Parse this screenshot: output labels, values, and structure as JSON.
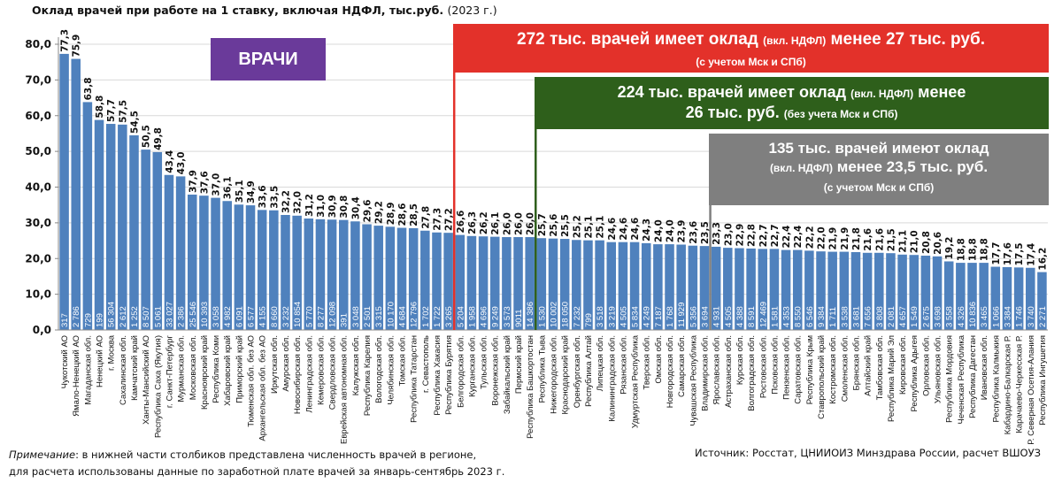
{
  "chart_data": {
    "type": "bar",
    "title": "Оклад врачей при работе на 1 ставку, включая НДФЛ, тыс.руб.",
    "title_year": "(2023 г.)",
    "ylim": [
      0,
      80
    ],
    "yticks": [
      "0,0",
      "10,0",
      "20,0",
      "30,0",
      "40,0",
      "50,0",
      "60,0",
      "70,0",
      "80,0"
    ],
    "grid": true,
    "bar_color": "#4f81bd",
    "categories": [
      "Чукотский АО",
      "Ямало-Ненецкий АО",
      "Магаданская обл.",
      "Ненецкий АО",
      "г. Москва",
      "Сахалинская обл.",
      "Камчатский край",
      "Ханты-Мансийский АО",
      "Республика Саха (Якутия)",
      "г. Санкт-Петербург",
      "Мурманская обл.",
      "Московская обл.",
      "Красноярский край",
      "Республика Коми",
      "Хабаровский край",
      "Приморский край",
      "Тюменская обл. без АО",
      "Архангельская обл. без АО",
      "Иркутская обл.",
      "Амурская обл.",
      "Новосибирская обл.",
      "Ленинградская обл.",
      "Кемеровская обл.",
      "Свердловская обл.",
      "Еврейская автономная обл.",
      "Калужская обл.",
      "Республика Карелия",
      "Вологодская обл.",
      "Челябинская обл.",
      "Томская обл.",
      "Республика Татарстан",
      "г. Севастополь",
      "Республика Хакасия",
      "Республика Бурятия",
      "Белгородская обл.",
      "Курганская обл.",
      "Тульская обл.",
      "Воронежская обл.",
      "Забайкальский край",
      "Пермский край",
      "Республика Башкортостан",
      "Республика Тыва",
      "Нижегородская обл.",
      "Краснодарский край",
      "Оренбургская обл.",
      "Республика Алтай",
      "Липецкая обл.",
      "Калининградская обл.",
      "Рязанская обл.",
      "Удмуртская Республика",
      "Тверская обл.",
      "Омская обл.",
      "Новгородская обл.",
      "Самарская обл.",
      "Чувашская Республика",
      "Владимирская обл.",
      "Ярославская обл.",
      "Астраханская обл.",
      "Курская обл.",
      "Волгоградская обл.",
      "Ростовская обл.",
      "Псковская обл.",
      "Пензенская обл.",
      "Саратовская обл.",
      "Республика Крым",
      "Ставропольский край",
      "Костромская обл.",
      "Смоленская обл.",
      "Брянская обл.",
      "Алтайский край",
      "Тамбовская обл.",
      "Республика Марий Эл",
      "Кировская обл.",
      "Республика Адыгея",
      "Орловская обл.",
      "Ульяновская обл.",
      "Республика Мордовия",
      "Чеченская Республика",
      "Республика Дагестан",
      "Ивановская обл.",
      "Республика Калмыкия",
      "Кабардино-Балкарская Р.",
      "Карачаево-Черкесская Р.",
      "Р. Северная Осетия-Алания",
      "Республика Ингушетия"
    ],
    "values": [
      77.3,
      75.9,
      63.8,
      58.8,
      57.7,
      57.5,
      54.5,
      50.5,
      49.8,
      43.4,
      43.0,
      37.9,
      37.6,
      37.0,
      36.1,
      35.1,
      34.9,
      33.6,
      33.5,
      32.2,
      32.0,
      31.2,
      31.0,
      30.9,
      30.8,
      30.4,
      29.6,
      29.2,
      28.9,
      28.6,
      28.5,
      27.8,
      27.3,
      27.2,
      26.6,
      26.3,
      26.2,
      26.1,
      26.0,
      26.0,
      26.0,
      25.7,
      25.6,
      25.5,
      25.2,
      25.1,
      25.1,
      24.6,
      24.6,
      24.6,
      24.3,
      24.0,
      24.0,
      23.9,
      23.6,
      23.5,
      23.3,
      23.0,
      22.9,
      22.8,
      22.7,
      22.7,
      22.4,
      22.4,
      22.2,
      22.0,
      21.9,
      21.9,
      21.8,
      21.6,
      21.6,
      21.5,
      21.1,
      21.0,
      20.8,
      20.6,
      19.2,
      18.8,
      18.8,
      18.8,
      17.7,
      17.6,
      17.5,
      17.4,
      16.2
    ],
    "value_labels": [
      "77,3",
      "75,9",
      "63,8",
      "58,8",
      "57,7",
      "57,5",
      "54,5",
      "50,5",
      "49,8",
      "43,4",
      "43,0",
      "37,9",
      "37,6",
      "37,0",
      "36,1",
      "35,1",
      "34,9",
      "33,6",
      "33,5",
      "32,2",
      "32,0",
      "31,2",
      "31,0",
      "30,9",
      "30,8",
      "30,4",
      "29,6",
      "29,2",
      "28,9",
      "28,6",
      "28,5",
      "27,8",
      "27,3",
      "27,2",
      "26,6",
      "26,3",
      "26,2",
      "26,1",
      "26,0",
      "26,0",
      "26,0",
      "25,7",
      "25,6",
      "25,5",
      "25,2",
      "25,1",
      "25,1",
      "24,6",
      "24,6",
      "24,6",
      "24,3",
      "24,0",
      "24,0",
      "23,9",
      "23,6",
      "23,5",
      "23,3",
      "23,0",
      "22,9",
      "22,8",
      "22,7",
      "22,7",
      "22,4",
      "22,4",
      "22,2",
      "22,0",
      "21,9",
      "21,9",
      "21,8",
      "21,6",
      "21,6",
      "21,5",
      "21,1",
      "21,0",
      "20,8",
      "20,6",
      "19,2",
      "18,8",
      "18,8",
      "18,8",
      "17,7",
      "17,6",
      "17,5",
      "17,4",
      "16,2"
    ],
    "doctor_counts": [
      "317",
      "2 786",
      "729",
      "199",
      "56 304",
      "2 612",
      "1 252",
      "8 507",
      "5 061",
      "33 027",
      "2 386",
      "25 546",
      "10 393",
      "3 058",
      "4 982",
      "6 091",
      "6 577",
      "4 155",
      "8 660",
      "3 232",
      "10 854",
      "5 770",
      "8 277",
      "12 098",
      "391",
      "3 048",
      "2 501",
      "3 315",
      "10 170",
      "4 684",
      "12 796",
      "1 702",
      "1 722",
      "3 265",
      "5 204",
      "1 958",
      "4 696",
      "9 249",
      "3 573",
      "9011",
      "14 386",
      "1 530",
      "10 002",
      "18 050",
      "7 232",
      "799",
      "3 518",
      "3 219",
      "4 505",
      "5 834",
      "4 249",
      "7 187",
      "1 768",
      "11 929",
      "5 356",
      "3 694",
      "4 931",
      "4 505",
      "4 388",
      "8 591",
      "12 469",
      "1 581",
      "4 353",
      "8 550",
      "6 546",
      "9 384",
      "1 711",
      "3 538",
      "3 681",
      "7 656",
      "3 808",
      "2 081",
      "4 657",
      "1 549",
      "2 675",
      "3 698",
      "3 558",
      "4 326",
      "10 836",
      "3 465",
      "1 066",
      "3 384",
      "1 746",
      "3 740",
      "2 271"
    ]
  },
  "annotations": {
    "badge": {
      "text": "ВРАЧИ",
      "color": "#6a3a9a"
    },
    "red": {
      "color": "#e3312a",
      "l1a": "272 тыс. врачей имеет оклад ",
      "l1b": "(вкл. НДФЛ)",
      "l1c": " менее 27 тыс. руб.",
      "l2": "(с учетом Мск и СПб)"
    },
    "green": {
      "color": "#2e5f1b",
      "l1a": "224 тыс. врачей имеет оклад ",
      "l1b": "(вкл. НДФЛ)",
      "l1c": " менее",
      "l2a": "26 тыс. руб. ",
      "l2b": "(без учета Мск и СПб)"
    },
    "grey": {
      "color": "#7f7f7f",
      "l1": "135 тыс. врачей имеют оклад",
      "l2a": "(вкл. НДФЛ)",
      "l2b": " менее 23,5 тыс. руб.",
      "l3": "(с учетом Мск и СПб)"
    }
  },
  "footer": {
    "note_label": "Примечание",
    "note_line1": ": в нижней части столбиков представлена численность врачей в регионе,",
    "note_line2": "для расчета использованы данные по заработной плате врачей за январь-сентябрь 2023 г.",
    "source": "Источник: Росстат, ЦНИИОИЗ Минздрава России, расчет ВШОУЗ"
  }
}
